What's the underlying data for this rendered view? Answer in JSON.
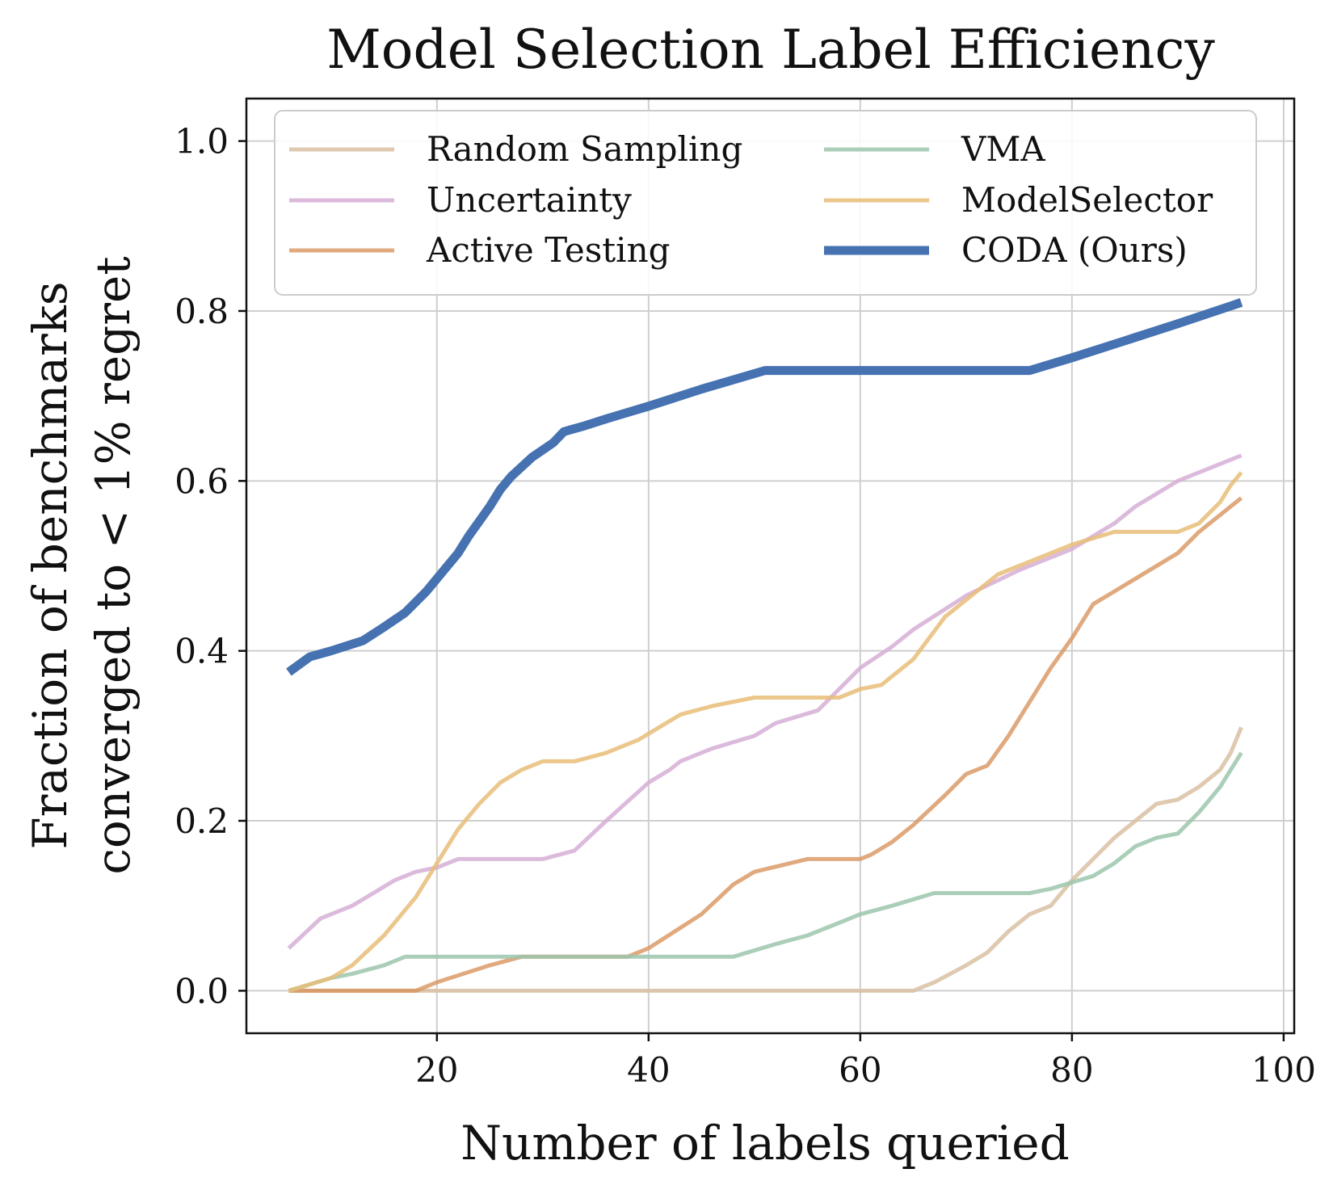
{
  "chart_data": {
    "type": "line",
    "title": "Model Selection Label Efficiency",
    "xlabel": "Number of labels queried",
    "ylabel_line1": "Fraction of benchmarks",
    "ylabel_line2": "converged to < 1% regret",
    "xlim": [
      2,
      101
    ],
    "ylim": [
      -0.05,
      1.05
    ],
    "xticks": [
      20,
      40,
      60,
      80,
      100
    ],
    "xtick_labels": [
      "20",
      "40",
      "60",
      "80",
      "100"
    ],
    "yticks": [
      0.0,
      0.2,
      0.4,
      0.6,
      0.8,
      1.0
    ],
    "ytick_labels": [
      "0.0",
      "0.2",
      "0.4",
      "0.6",
      "0.8",
      "1.0"
    ],
    "grid": true,
    "legend_position": "top",
    "legend_columns": 2,
    "series": [
      {
        "name": "Random Sampling",
        "color": "#d9bfa2",
        "opacity": 0.85,
        "width": 5,
        "x": [
          6,
          20,
          40,
          60,
          65,
          67,
          70,
          72,
          74,
          76,
          78,
          80,
          82,
          84,
          86,
          88,
          90,
          92,
          94,
          95,
          96
        ],
        "y": [
          0,
          0,
          0,
          0,
          0,
          0.01,
          0.03,
          0.045,
          0.07,
          0.09,
          0.1,
          0.13,
          0.155,
          0.18,
          0.2,
          0.22,
          0.225,
          0.24,
          0.26,
          0.28,
          0.31
        ]
      },
      {
        "name": "Uncertainty",
        "color": "#d6aed6",
        "opacity": 0.85,
        "width": 5,
        "x": [
          6,
          9,
          10,
          12,
          14,
          16,
          18,
          20,
          22,
          25,
          28,
          30,
          33,
          36,
          40,
          42,
          43,
          46,
          50,
          52,
          56,
          60,
          63,
          65,
          70,
          75,
          80,
          82,
          84,
          86,
          88,
          90,
          92,
          94,
          96
        ],
        "y": [
          0.05,
          0.085,
          0.09,
          0.1,
          0.115,
          0.13,
          0.14,
          0.145,
          0.155,
          0.155,
          0.155,
          0.155,
          0.165,
          0.2,
          0.245,
          0.26,
          0.27,
          0.285,
          0.3,
          0.315,
          0.33,
          0.38,
          0.405,
          0.425,
          0.465,
          0.495,
          0.52,
          0.535,
          0.55,
          0.57,
          0.585,
          0.6,
          0.61,
          0.62,
          0.63
        ]
      },
      {
        "name": "Active Testing",
        "color": "#d8935e",
        "opacity": 0.8,
        "width": 5,
        "x": [
          6,
          10,
          15,
          18,
          20,
          25,
          28,
          30,
          35,
          38,
          40,
          45,
          48,
          50,
          55,
          58,
          60,
          61,
          63,
          65,
          68,
          70,
          72,
          74,
          76,
          78,
          80,
          82,
          84,
          86,
          88,
          90,
          92,
          94,
          96
        ],
        "y": [
          0,
          0,
          0,
          0,
          0.01,
          0.03,
          0.04,
          0.04,
          0.04,
          0.04,
          0.05,
          0.09,
          0.125,
          0.14,
          0.155,
          0.155,
          0.155,
          0.16,
          0.175,
          0.195,
          0.23,
          0.255,
          0.265,
          0.3,
          0.34,
          0.38,
          0.415,
          0.455,
          0.47,
          0.485,
          0.5,
          0.515,
          0.54,
          0.56,
          0.58
        ]
      },
      {
        "name": "VMA",
        "color": "#9cc6ad",
        "opacity": 0.85,
        "width": 5,
        "x": [
          6,
          10,
          12,
          15,
          17,
          20,
          30,
          40,
          48,
          52,
          55,
          57,
          58,
          60,
          63,
          67,
          70,
          76,
          78,
          82,
          84,
          86,
          88,
          90,
          92,
          94,
          96
        ],
        "y": [
          0,
          0.015,
          0.02,
          0.03,
          0.04,
          0.04,
          0.04,
          0.04,
          0.04,
          0.055,
          0.065,
          0.075,
          0.08,
          0.09,
          0.1,
          0.115,
          0.115,
          0.115,
          0.12,
          0.135,
          0.15,
          0.17,
          0.18,
          0.185,
          0.21,
          0.24,
          0.28
        ]
      },
      {
        "name": "ModelSelector",
        "color": "#e7bd78",
        "opacity": 0.85,
        "width": 5,
        "x": [
          6,
          10,
          12,
          15,
          18,
          20,
          22,
          24,
          26,
          28,
          30,
          33,
          36,
          39,
          43,
          46,
          50,
          55,
          58,
          60,
          62,
          63,
          65,
          68,
          70,
          73,
          75,
          80,
          84,
          90,
          92,
          94,
          95,
          96
        ],
        "y": [
          0,
          0.015,
          0.03,
          0.065,
          0.11,
          0.15,
          0.19,
          0.22,
          0.245,
          0.26,
          0.27,
          0.27,
          0.28,
          0.295,
          0.325,
          0.335,
          0.345,
          0.345,
          0.345,
          0.355,
          0.36,
          0.37,
          0.39,
          0.44,
          0.46,
          0.49,
          0.5,
          0.525,
          0.54,
          0.54,
          0.55,
          0.575,
          0.595,
          0.61
        ]
      },
      {
        "name": "CODA (Ours)",
        "color": "#4672b1",
        "opacity": 1,
        "width": 11,
        "x": [
          6,
          8,
          10,
          13,
          15,
          17,
          19,
          21,
          22,
          23,
          25,
          26,
          27,
          29,
          31,
          32,
          34,
          36,
          40,
          45,
          51,
          55,
          60,
          65,
          70,
          76,
          80,
          85,
          90,
          96
        ],
        "y": [
          0.375,
          0.393,
          0.4,
          0.412,
          0.428,
          0.445,
          0.47,
          0.5,
          0.515,
          0.535,
          0.57,
          0.59,
          0.605,
          0.628,
          0.645,
          0.658,
          0.665,
          0.673,
          0.688,
          0.708,
          0.73,
          0.73,
          0.73,
          0.73,
          0.73,
          0.73,
          0.745,
          0.765,
          0.785,
          0.81
        ]
      }
    ]
  }
}
